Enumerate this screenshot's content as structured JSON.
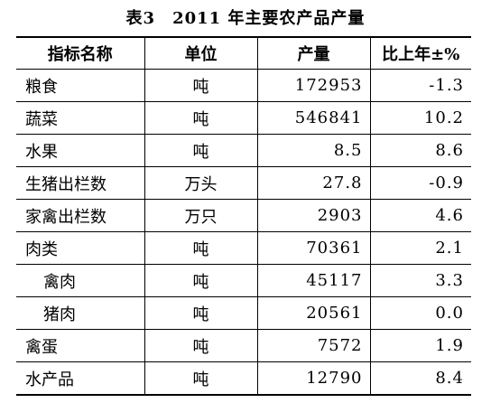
{
  "header": {
    "title": "表3　2011 年主要农产品产量"
  },
  "table": {
    "columns": [
      "指标名称",
      "单位",
      "产量",
      "比上年±%"
    ],
    "rows": [
      [
        "粮食",
        "吨",
        "172953",
        "-1.3"
      ],
      [
        "蔬菜",
        "吨",
        "546841",
        "10.2"
      ],
      [
        "水果",
        "吨",
        "8.5",
        "8.6"
      ],
      [
        "生猪出栏数",
        "万头",
        "27.8",
        "-0.9"
      ],
      [
        "家禽出栏数",
        "万只",
        "2903",
        "4.6"
      ],
      [
        "肉类",
        "吨",
        "70361",
        "2.1"
      ],
      [
        "禽肉",
        "吨",
        "45117",
        "3.3"
      ],
      [
        "猪肉",
        "吨",
        "20561",
        "0.0"
      ],
      [
        "禽蛋",
        "吨",
        "7572",
        "1.9"
      ],
      [
        "水产品",
        "吨",
        "12790",
        "8.4"
      ]
    ]
  }
}
